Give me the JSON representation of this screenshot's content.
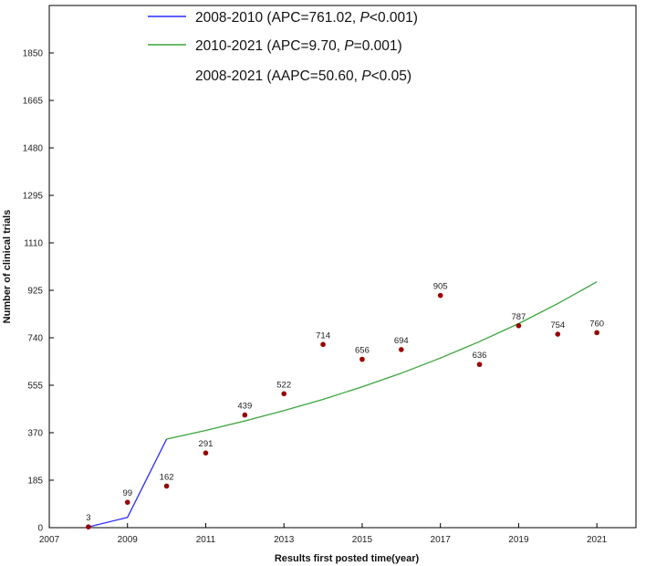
{
  "chart_data": {
    "type": "scatter",
    "xlabel": "Results first posted time(year)",
    "ylabel": "Number of clinical trials",
    "xlim": [
      2007,
      2022
    ],
    "ylim": [
      0,
      2035
    ],
    "x_ticks": [
      2007,
      2009,
      2011,
      2013,
      2015,
      2017,
      2019,
      2021
    ],
    "y_ticks": [
      0,
      185,
      370,
      555,
      740,
      925,
      1110,
      1295,
      1480,
      1665,
      1850
    ],
    "grid": false,
    "legend_position": "top",
    "points": {
      "color": "#990000",
      "x": [
        2008,
        2009,
        2010,
        2011,
        2012,
        2013,
        2014,
        2015,
        2016,
        2017,
        2018,
        2019,
        2020,
        2021
      ],
      "y": [
        3,
        99,
        162,
        291,
        439,
        522,
        714,
        656,
        694,
        905,
        636,
        787,
        754,
        760
      ]
    },
    "series": [
      {
        "name": "2008-2010",
        "color": "#2b2bff",
        "x": [
          2008,
          2009,
          2010
        ],
        "y": [
          3,
          40,
          345
        ]
      },
      {
        "name": "2010-2021",
        "color": "#3aa53a",
        "x": [
          2010,
          2011,
          2012,
          2013,
          2014,
          2015,
          2016,
          2017,
          2018,
          2019,
          2020,
          2021
        ],
        "y": [
          345,
          379,
          416,
          456,
          500,
          549,
          602,
          661,
          725,
          795,
          873,
          958
        ]
      }
    ],
    "legend": [
      {
        "period": "2008-2010",
        "stat_label": "APC=761.02, ",
        "p_symbol": "P",
        "p_text": "<0.001",
        "color": "#2b2bff"
      },
      {
        "period": "2010-2021",
        "stat_label": "APC=9.70, ",
        "p_symbol": "P",
        "p_text": "=0.001",
        "color": "#3aa53a"
      },
      {
        "period": "2008-2021",
        "stat_label": "AAPC=50.60, ",
        "p_symbol": "P",
        "p_text": "<0.05",
        "color": ""
      }
    ]
  }
}
